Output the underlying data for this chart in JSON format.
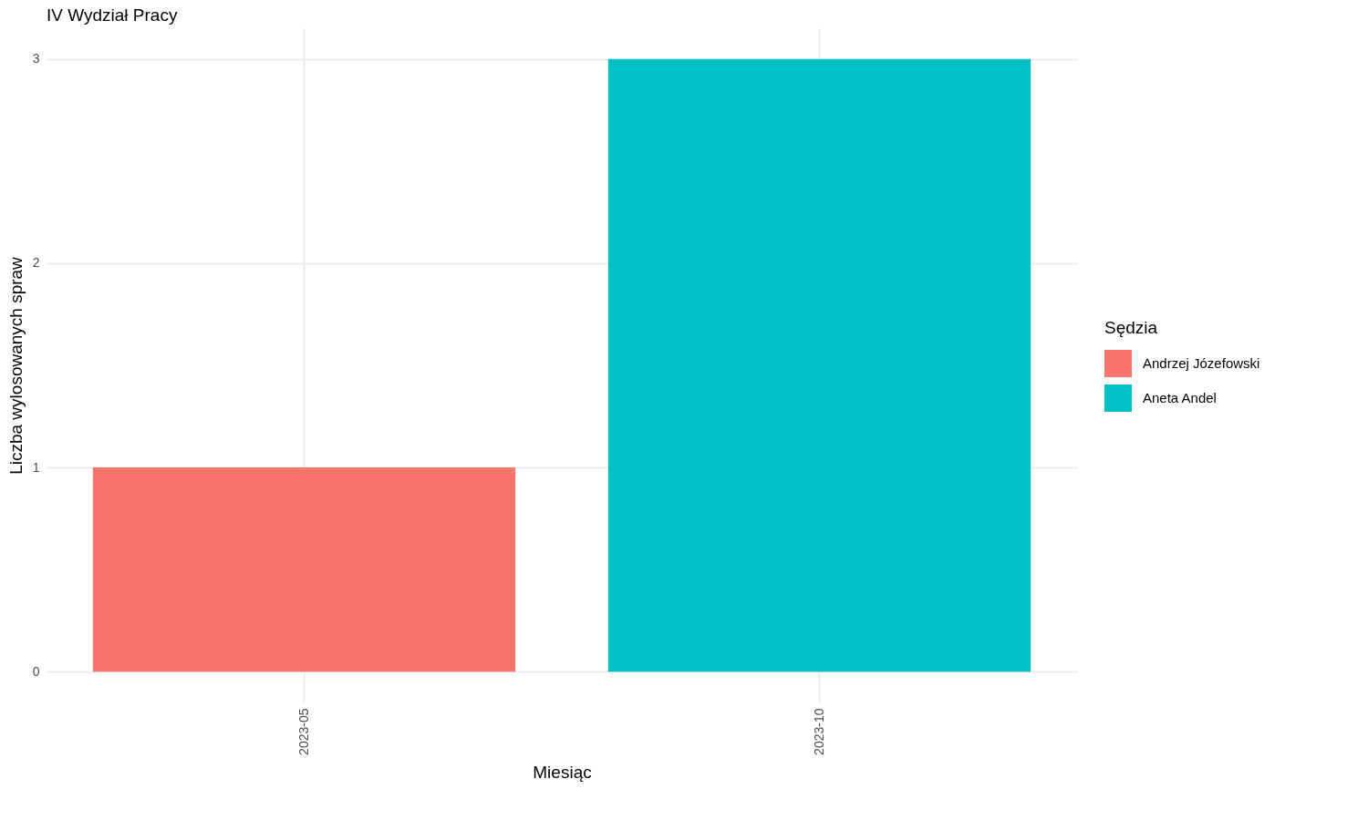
{
  "chart_data": {
    "type": "bar",
    "title": "IV Wydział Pracy",
    "xlabel": "Miesiąc",
    "ylabel": "Liczba wylosowanych spraw",
    "legend_title": "Sędzia",
    "categories": [
      "2023-05",
      "2023-10"
    ],
    "series": [
      {
        "name": "Andrzej Józefowski",
        "color": "#f8766d",
        "values": [
          1,
          null
        ]
      },
      {
        "name": "Aneta Andel",
        "color": "#00bfc4",
        "values": [
          null,
          3
        ]
      }
    ],
    "ylim": [
      -0.15,
      3.15
    ],
    "yticks": [
      0,
      1,
      2,
      3
    ],
    "grid": true,
    "legend": "right"
  }
}
